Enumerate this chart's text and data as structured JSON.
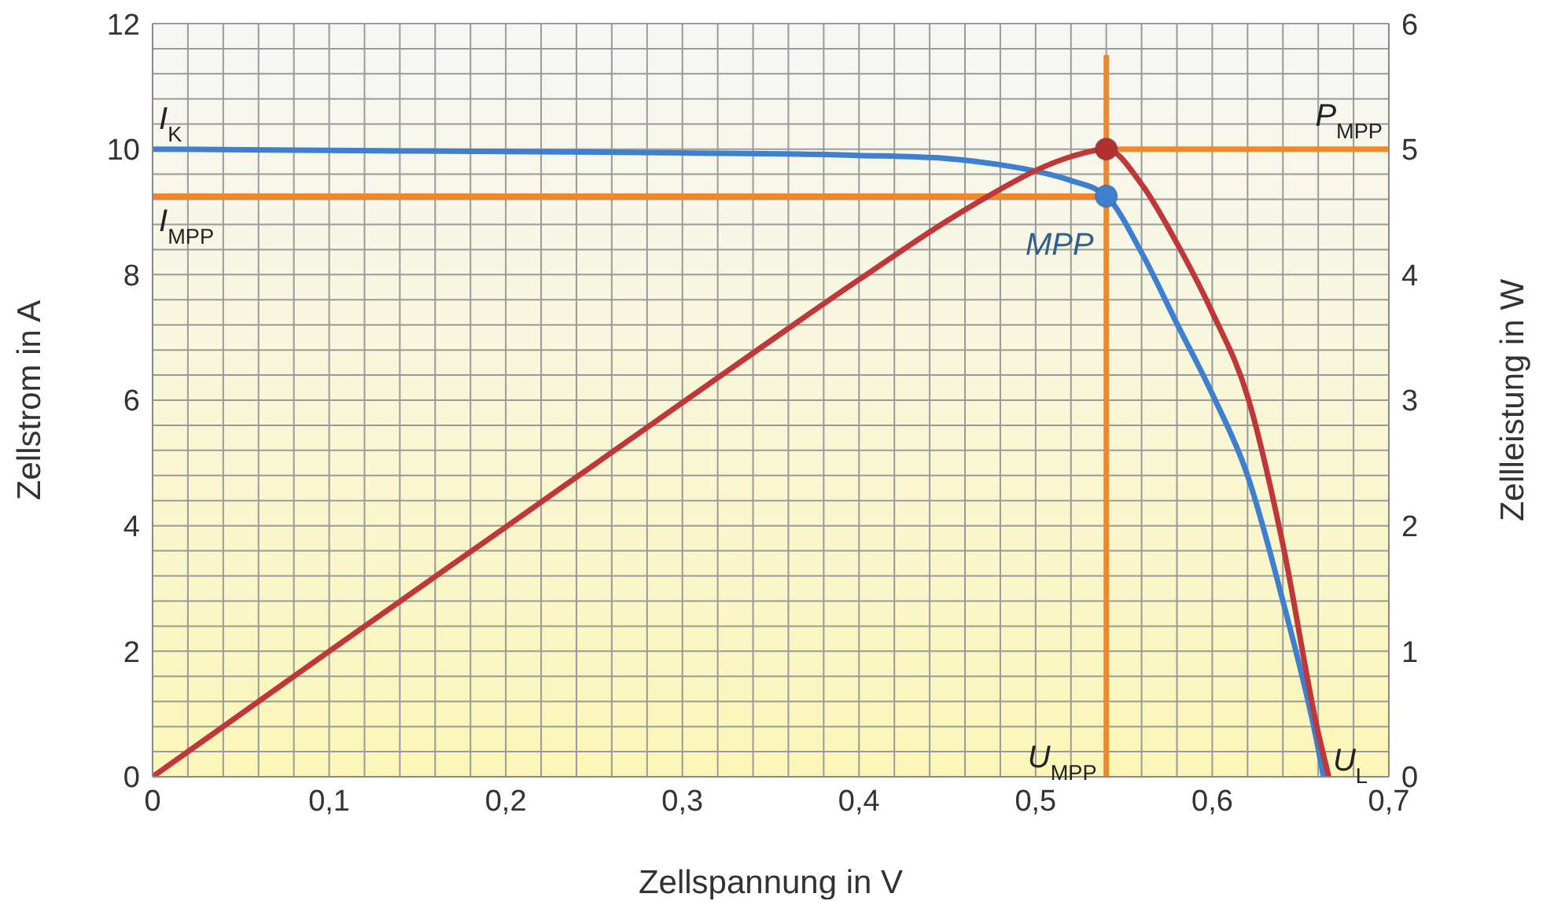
{
  "chart_data": {
    "type": "line",
    "xlabel": "Zellspannung in V",
    "ylabel": "Zellstrom in A",
    "y2label": "Zellleistung in W",
    "xlim": [
      0,
      0.7
    ],
    "xticks": [
      {
        "value": 0,
        "label": "0"
      },
      {
        "value": 0.02,
        "label": null
      },
      {
        "value": 0.04,
        "label": null
      },
      {
        "value": 0.06,
        "label": null
      },
      {
        "value": 0.08,
        "label": null
      },
      {
        "value": 0.1,
        "label": "0,1"
      },
      {
        "value": 0.12,
        "label": null
      },
      {
        "value": 0.14,
        "label": null
      },
      {
        "value": 0.16,
        "label": null
      },
      {
        "value": 0.18,
        "label": null
      },
      {
        "value": 0.2,
        "label": "0,2"
      },
      {
        "value": 0.22,
        "label": null
      },
      {
        "value": 0.24,
        "label": null
      },
      {
        "value": 0.26,
        "label": null
      },
      {
        "value": 0.28,
        "label": null
      },
      {
        "value": 0.3,
        "label": "0,3"
      },
      {
        "value": 0.32,
        "label": null
      },
      {
        "value": 0.34,
        "label": null
      },
      {
        "value": 0.36,
        "label": null
      },
      {
        "value": 0.38,
        "label": null
      },
      {
        "value": 0.4,
        "label": "0,4"
      },
      {
        "value": 0.42,
        "label": null
      },
      {
        "value": 0.44,
        "label": null
      },
      {
        "value": 0.46,
        "label": null
      },
      {
        "value": 0.48,
        "label": null
      },
      {
        "value": 0.5,
        "label": "0,5"
      },
      {
        "value": 0.52,
        "label": null
      },
      {
        "value": 0.54,
        "label": null
      },
      {
        "value": 0.56,
        "label": null
      },
      {
        "value": 0.58,
        "label": null
      },
      {
        "value": 0.6,
        "label": "0,6"
      },
      {
        "value": 0.62,
        "label": null
      },
      {
        "value": 0.64,
        "label": null
      },
      {
        "value": 0.66,
        "label": null
      },
      {
        "value": 0.68,
        "label": null
      },
      {
        "value": 0.7,
        "label": "0,7"
      }
    ],
    "ylim": [
      0,
      12
    ],
    "yticks": [
      0,
      {
        "value": 0.4,
        "label": null
      },
      {
        "value": 0.8,
        "label": null
      },
      {
        "value": 1.2,
        "label": null
      },
      {
        "value": 1.6,
        "label": null
      },
      2,
      {
        "value": 2.4,
        "label": null
      },
      {
        "value": 2.8,
        "label": null
      },
      {
        "value": 3.2,
        "label": null
      },
      {
        "value": 3.6,
        "label": null
      },
      4,
      {
        "value": 4.4,
        "label": null
      },
      {
        "value": 4.8,
        "label": null
      },
      {
        "value": 5.2,
        "label": null
      },
      {
        "value": 5.6,
        "label": null
      },
      6,
      {
        "value": 6.4,
        "label": null
      },
      {
        "value": 6.8,
        "label": null
      },
      {
        "value": 7.2,
        "label": null
      },
      {
        "value": 7.6,
        "label": null
      },
      8,
      {
        "value": 8.4,
        "label": null
      },
      {
        "value": 8.8,
        "label": null
      },
      {
        "value": 9.2,
        "label": null
      },
      {
        "value": 9.6,
        "label": null
      },
      10,
      {
        "value": 10.4,
        "label": null
      },
      {
        "value": 10.8,
        "label": null
      },
      {
        "value": 11.2,
        "label": null
      },
      {
        "value": 11.6,
        "label": null
      },
      12
    ],
    "y2lim": [
      0,
      6
    ],
    "y2ticks": [
      0,
      1,
      2,
      3,
      4,
      5,
      6
    ],
    "grid": true,
    "series": [
      {
        "color": "#f0882a",
        "x": [
          0,
          0.54
        ],
        "values": [
          9.25,
          9.25
        ],
        "marker": "none",
        "line_style": "solid"
      },
      {
        "color": "#f0882a",
        "x": [
          0.54,
          0.54
        ],
        "values": [
          0,
          11.5
        ],
        "marker": "none",
        "line_style": "solid"
      },
      {
        "color": "#f0882a",
        "axis": "y2",
        "x": [
          0.54,
          0.7
        ],
        "values": [
          5,
          5
        ],
        "marker": "none",
        "line_style": "solid"
      },
      {
        "color": "#3f7fd0",
        "x": [
          0,
          0.1,
          0.2,
          0.3,
          0.4,
          0.45,
          0.48,
          0.5,
          0.52,
          0.54,
          0.56,
          0.58,
          0.6,
          0.62,
          0.64,
          0.66,
          0.663
        ],
        "values": [
          10,
          9.98,
          9.96,
          9.94,
          9.9,
          9.85,
          9.75,
          9.65,
          9.5,
          9.25,
          8.35,
          7.22,
          6.1,
          4.8,
          2.8,
          0.45,
          0
        ],
        "marker": "none",
        "line_style": "solid"
      },
      {
        "color": "#c0373a",
        "axis": "y2",
        "x": [
          0,
          0.1,
          0.2,
          0.3,
          0.4,
          0.45,
          0.48,
          0.5,
          0.52,
          0.54,
          0.56,
          0.58,
          0.6,
          0.62,
          0.64,
          0.66,
          0.666
        ],
        "values": [
          0,
          1,
          1.99,
          2.98,
          3.96,
          4.43,
          4.68,
          4.83,
          4.94,
          5,
          4.72,
          4.25,
          3.7,
          3.03,
          1.85,
          0.35,
          0
        ],
        "marker": "none",
        "line_style": "solid"
      },
      {
        "type": "scatter",
        "color": "#3f7fd0",
        "x": [
          0.54
        ],
        "values": [
          9.25
        ],
        "marker": "circle"
      },
      {
        "type": "scatter",
        "color": "#b0302f",
        "axis": "y2",
        "x": [
          0.54
        ],
        "values": [
          5
        ],
        "marker": "circle"
      }
    ],
    "annotations": [
      {
        "text": "I$_{K}$",
        "x": 0,
        "y": 10
      },
      {
        "text": "I$_{MPP}$",
        "x": 0,
        "y": 9.25
      },
      {
        "text": "P$_{MPP}$",
        "x": 0.7,
        "y": 10
      },
      {
        "text": "MPP",
        "x": 0.54,
        "y": 9.25
      },
      {
        "text": "U$_{MPP}$",
        "x": 0.54,
        "y": 0
      },
      {
        "text": "U$_{L}$",
        "x": 0.663,
        "y": 0
      }
    ]
  }
}
